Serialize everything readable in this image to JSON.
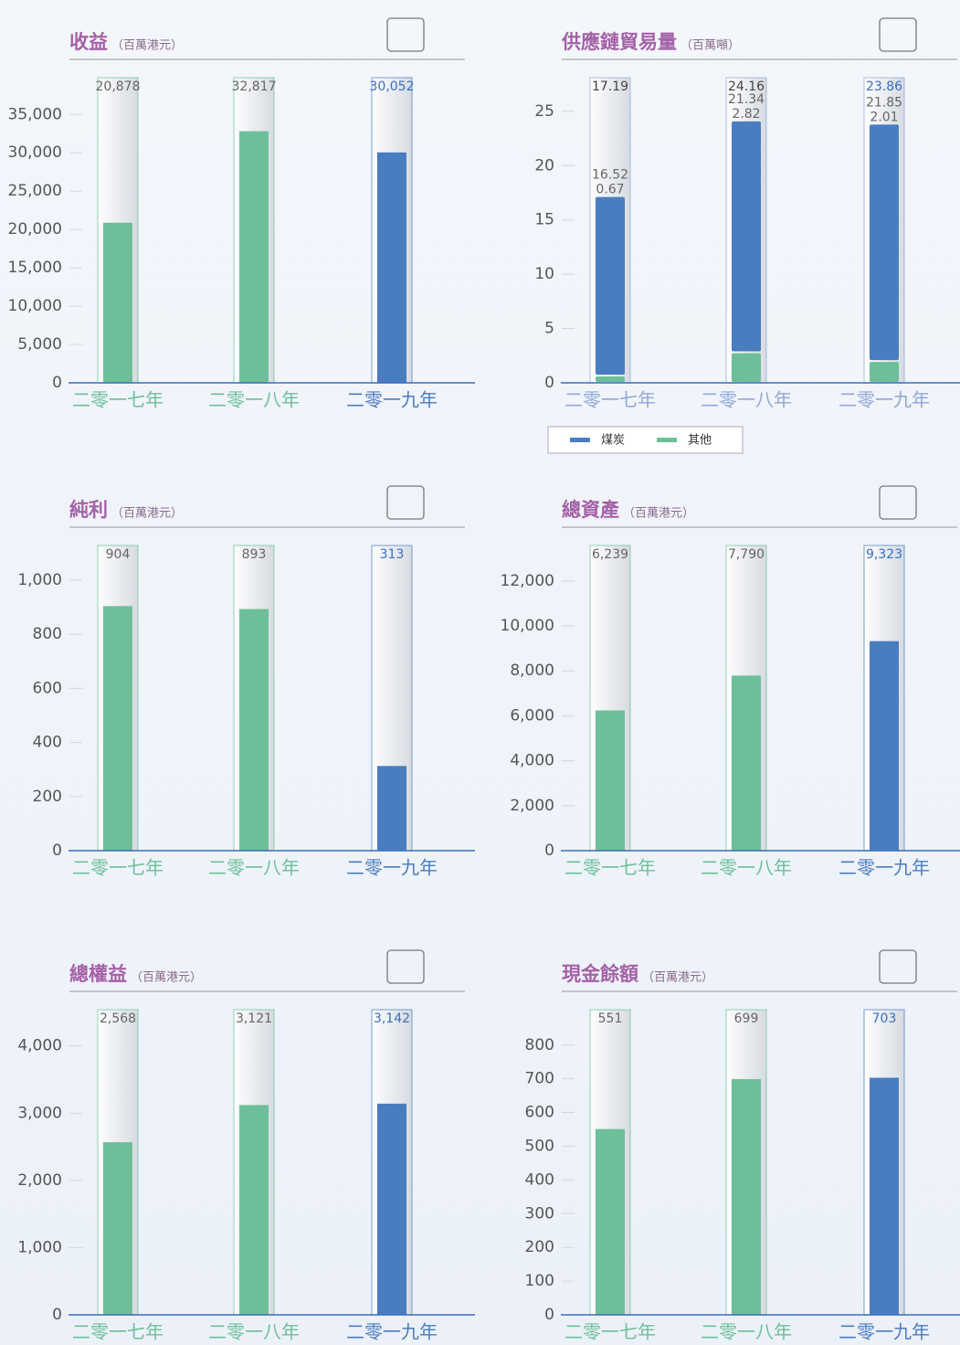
{
  "chart_data": [
    {
      "type": "bar",
      "title": "收益",
      "subtitle": "（百萬港元）",
      "categories": [
        "二零一七年",
        "二零一八年",
        "二零一九年"
      ],
      "values": [
        20878,
        32817,
        30052
      ],
      "value_labels": [
        "20,878",
        "32,817",
        "30,052"
      ],
      "colors": [
        "#6cbf98",
        "#6cbf98",
        "#4a7cc0"
      ],
      "label_colors": [
        "#666666",
        "#666666",
        "#3a6fc0"
      ],
      "ylim": [
        0,
        39800
      ],
      "yticks": [
        0,
        {
          "value": 5000,
          "label": "5,000"
        },
        {
          "value": 10000,
          "label": "10,000"
        },
        {
          "value": 15000,
          "label": "15,000"
        },
        {
          "value": 20000,
          "label": "20,000"
        },
        {
          "value": 25000,
          "label": "25,000"
        },
        {
          "value": 30000,
          "label": "30,000"
        },
        {
          "value": 35000,
          "label": "35,000"
        }
      ]
    },
    {
      "type": "stacked_bar",
      "title": "供應鏈貿易量",
      "subtitle": "（百萬噸）",
      "categories": [
        "二零一七年",
        "二零一八年",
        "二零一九年"
      ],
      "series": [
        {
          "name": "其他",
          "color": "#6cbf98",
          "values": [
            0.67,
            2.82,
            2.01
          ]
        },
        {
          "name": "煤炭",
          "color": "#4a7cc0",
          "values": [
            16.52,
            21.34,
            21.85
          ]
        }
      ],
      "totals": [
        17.19,
        24.16,
        23.86
      ],
      "colors": [
        "#8fa6d8",
        "#8fa6d8",
        "#8fa6d8"
      ],
      "label_colors": [
        "#444444",
        "#444444",
        "#3a6fc0"
      ],
      "ylim": [
        0,
        28.1
      ],
      "yticks": [
        0,
        5,
        10,
        15,
        20,
        25
      ],
      "legend": "bottom"
    },
    {
      "type": "bar",
      "title": "純利",
      "subtitle": "（百萬港元）",
      "categories": [
        "二零一七年",
        "二零一八年",
        "二零一九年"
      ],
      "values": [
        904,
        893,
        313
      ],
      "colors": [
        "#6cbf98",
        "#6cbf98",
        "#4a7cc0"
      ],
      "label_colors": [
        "#666666",
        "#666666",
        "#3a6fc0"
      ],
      "ylim": [
        0,
        1128
      ],
      "yticks": [
        0,
        200,
        400,
        600,
        800,
        {
          "value": 1000,
          "label": "1,000"
        }
      ]
    },
    {
      "type": "bar",
      "title": "總資產",
      "subtitle": "（百萬港元）",
      "categories": [
        "二零一七年",
        "二零一八年",
        "二零一九年"
      ],
      "values": [
        6239,
        7790,
        9323
      ],
      "value_labels": [
        "6,239",
        "7,790",
        "9,323"
      ],
      "colors": [
        "#6cbf98",
        "#6cbf98",
        "#4a7cc0"
      ],
      "label_colors": [
        "#666666",
        "#666666",
        "#3a6fc0"
      ],
      "ylim": [
        0,
        13580
      ],
      "yticks": [
        0,
        {
          "value": 2000,
          "label": "2,000"
        },
        {
          "value": 4000,
          "label": "4,000"
        },
        {
          "value": 6000,
          "label": "6,000"
        },
        {
          "value": 8000,
          "label": "8,000"
        },
        {
          "value": 10000,
          "label": "10,000"
        },
        {
          "value": 12000,
          "label": "12,000"
        }
      ]
    },
    {
      "type": "bar",
      "title": "總權益",
      "subtitle": "（百萬港元）",
      "categories": [
        "二零一七年",
        "二零一八年",
        "二零一九年"
      ],
      "values": [
        2568,
        3121,
        3142
      ],
      "value_labels": [
        "2,568",
        "3,121",
        "3,142"
      ],
      "colors": [
        "#6cbf98",
        "#6cbf98",
        "#4a7cc0"
      ],
      "label_colors": [
        "#666666",
        "#666666",
        "#3a6fc0"
      ],
      "ylim": [
        0,
        4540
      ],
      "yticks": [
        0,
        {
          "value": 1000,
          "label": "1,000"
        },
        {
          "value": 2000,
          "label": "2,000"
        },
        {
          "value": 3000,
          "label": "3,000"
        },
        {
          "value": 4000,
          "label": "4,000"
        }
      ]
    },
    {
      "type": "bar",
      "title": "現金餘額",
      "subtitle": "（百萬港元）",
      "categories": [
        "二零一七年",
        "二零一八年",
        "二零一九年"
      ],
      "values": [
        551,
        699,
        703
      ],
      "colors": [
        "#6cbf98",
        "#6cbf98",
        "#4a7cc0"
      ],
      "label_colors": [
        "#666666",
        "#666666",
        "#3a6fc0"
      ],
      "ylim": [
        0,
        905
      ],
      "yticks": [
        0,
        100,
        200,
        300,
        400,
        500,
        600,
        700,
        800
      ]
    }
  ]
}
